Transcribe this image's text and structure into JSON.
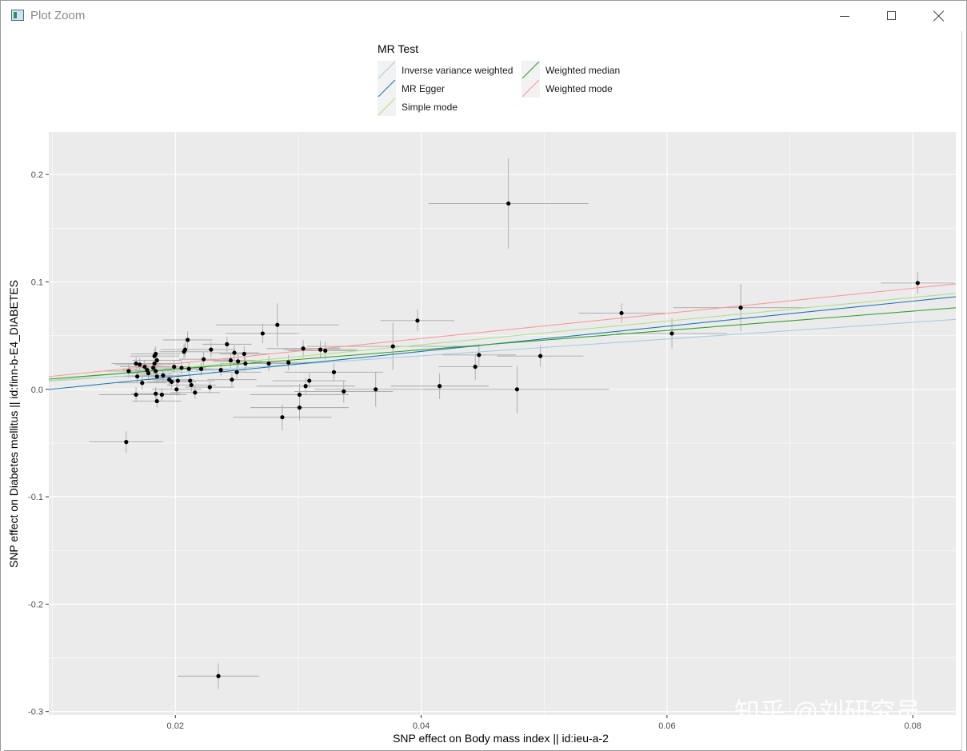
{
  "window": {
    "title": "Plot Zoom",
    "icons": {
      "app": "plot-zoom-icon",
      "minimize": "minimize-icon",
      "maximize": "maximize-icon",
      "close": "close-icon"
    }
  },
  "watermark": "知乎 @刘研究员",
  "chart_data": {
    "type": "scatter",
    "xlabel": "SNP effect on Body mass index || id:ieu-a-2",
    "ylabel": "SNP effect on Diabetes mellitus || id:finn-b-E4_DIABETES",
    "xlim": [
      0.0097,
      0.0835
    ],
    "ylim": [
      -0.3032,
      0.2396
    ],
    "xticks": [
      0.02,
      0.04,
      0.06,
      0.08
    ],
    "xtick_labels": [
      "0.02",
      "0.04",
      "0.06",
      "0.08"
    ],
    "yticks": [
      -0.3,
      -0.2,
      -0.1,
      0.0,
      0.1,
      0.2
    ],
    "ytick_labels": [
      "-0.3",
      "-0.2",
      "-0.1",
      "0.0",
      "0.1",
      "0.2"
    ],
    "grid": true,
    "legend_position": "top",
    "legend": {
      "title": "MR Test",
      "entries": [
        {
          "name": "Inverse variance weighted",
          "color": "#a6cee3"
        },
        {
          "name": "MR Egger",
          "color": "#1f78b4"
        },
        {
          "name": "Simple mode",
          "color": "#b2df8a"
        },
        {
          "name": "Weighted median",
          "color": "#33a02c"
        },
        {
          "name": "Weighted mode",
          "color": "#fb9a99"
        }
      ]
    },
    "lines": [
      {
        "name": "Inverse variance weighted",
        "color": "#a6cee3",
        "intercept": 0.0,
        "slope": 0.78
      },
      {
        "name": "MR Egger",
        "color": "#1f78b4",
        "intercept": -0.0115,
        "slope": 1.17
      },
      {
        "name": "Simple mode",
        "color": "#b2df8a",
        "intercept": -0.0025,
        "slope": 1.1
      },
      {
        "name": "Weighted median",
        "color": "#33a02c",
        "intercept": 0.0008,
        "slope": 0.9
      },
      {
        "name": "Weighted mode",
        "color": "#fb9a99",
        "intercept": 0.0005,
        "slope": 1.17
      }
    ],
    "points": [
      {
        "x": 0.0162,
        "y": 0.017,
        "xerr": 0.002,
        "yerr": 0.006
      },
      {
        "x": 0.0168,
        "y": 0.024,
        "xerr": 0.002,
        "yerr": 0.006
      },
      {
        "x": 0.0171,
        "y": 0.023,
        "xerr": 0.002,
        "yerr": 0.006
      },
      {
        "x": 0.0175,
        "y": 0.021,
        "xerr": 0.002,
        "yerr": 0.006
      },
      {
        "x": 0.0177,
        "y": 0.018,
        "xerr": 0.002,
        "yerr": 0.006
      },
      {
        "x": 0.0173,
        "y": 0.006,
        "xerr": 0.002,
        "yerr": 0.006
      },
      {
        "x": 0.0169,
        "y": 0.012,
        "xerr": 0.002,
        "yerr": 0.006
      },
      {
        "x": 0.0168,
        "y": -0.005,
        "xerr": 0.003,
        "yerr": 0.007
      },
      {
        "x": 0.0178,
        "y": 0.015,
        "xerr": 0.002,
        "yerr": 0.006
      },
      {
        "x": 0.0182,
        "y": 0.02,
        "xerr": 0.002,
        "yerr": 0.006
      },
      {
        "x": 0.0183,
        "y": 0.031,
        "xerr": 0.002,
        "yerr": 0.007
      },
      {
        "x": 0.0184,
        "y": 0.033,
        "xerr": 0.002,
        "yerr": 0.007
      },
      {
        "x": 0.0185,
        "y": 0.027,
        "xerr": 0.002,
        "yerr": 0.006
      },
      {
        "x": 0.0183,
        "y": 0.024,
        "xerr": 0.002,
        "yerr": 0.006
      },
      {
        "x": 0.0184,
        "y": 0.017,
        "xerr": 0.002,
        "yerr": 0.006
      },
      {
        "x": 0.0185,
        "y": 0.012,
        "xerr": 0.002,
        "yerr": 0.006
      },
      {
        "x": 0.0184,
        "y": -0.004,
        "xerr": 0.002,
        "yerr": 0.006
      },
      {
        "x": 0.0185,
        "y": -0.011,
        "xerr": 0.002,
        "yerr": 0.006
      },
      {
        "x": 0.0189,
        "y": -0.005,
        "xerr": 0.002,
        "yerr": 0.006
      },
      {
        "x": 0.019,
        "y": 0.013,
        "xerr": 0.002,
        "yerr": 0.006
      },
      {
        "x": 0.0195,
        "y": 0.009,
        "xerr": 0.002,
        "yerr": 0.006
      },
      {
        "x": 0.0197,
        "y": 0.007,
        "xerr": 0.002,
        "yerr": 0.006
      },
      {
        "x": 0.0199,
        "y": 0.021,
        "xerr": 0.002,
        "yerr": 0.006
      },
      {
        "x": 0.0201,
        "y": 0.0,
        "xerr": 0.002,
        "yerr": 0.006
      },
      {
        "x": 0.0202,
        "y": 0.008,
        "xerr": 0.002,
        "yerr": 0.006
      },
      {
        "x": 0.0205,
        "y": 0.02,
        "xerr": 0.002,
        "yerr": 0.006
      },
      {
        "x": 0.0207,
        "y": 0.035,
        "xerr": 0.002,
        "yerr": 0.007
      },
      {
        "x": 0.0208,
        "y": 0.037,
        "xerr": 0.002,
        "yerr": 0.007
      },
      {
        "x": 0.021,
        "y": 0.046,
        "xerr": 0.002,
        "yerr": 0.008
      },
      {
        "x": 0.0211,
        "y": 0.019,
        "xerr": 0.002,
        "yerr": 0.006
      },
      {
        "x": 0.0212,
        "y": 0.008,
        "xerr": 0.002,
        "yerr": 0.006
      },
      {
        "x": 0.0213,
        "y": 0.004,
        "xerr": 0.002,
        "yerr": 0.006
      },
      {
        "x": 0.0216,
        "y": -0.003,
        "xerr": 0.002,
        "yerr": 0.006
      },
      {
        "x": 0.0221,
        "y": 0.019,
        "xerr": 0.002,
        "yerr": 0.006
      },
      {
        "x": 0.0223,
        "y": 0.028,
        "xerr": 0.002,
        "yerr": 0.007
      },
      {
        "x": 0.0228,
        "y": 0.002,
        "xerr": 0.002,
        "yerr": 0.006
      },
      {
        "x": 0.0229,
        "y": 0.037,
        "xerr": 0.002,
        "yerr": 0.007
      },
      {
        "x": 0.0237,
        "y": 0.018,
        "xerr": 0.002,
        "yerr": 0.006
      },
      {
        "x": 0.0242,
        "y": 0.042,
        "xerr": 0.002,
        "yerr": 0.007
      },
      {
        "x": 0.0245,
        "y": 0.027,
        "xerr": 0.002,
        "yerr": 0.007
      },
      {
        "x": 0.0246,
        "y": 0.009,
        "xerr": 0.002,
        "yerr": 0.006
      },
      {
        "x": 0.0248,
        "y": 0.034,
        "xerr": 0.002,
        "yerr": 0.007
      },
      {
        "x": 0.025,
        "y": 0.016,
        "xerr": 0.002,
        "yerr": 0.006
      },
      {
        "x": 0.0251,
        "y": 0.026,
        "xerr": 0.002,
        "yerr": 0.007
      },
      {
        "x": 0.0256,
        "y": 0.033,
        "xerr": 0.002,
        "yerr": 0.007
      },
      {
        "x": 0.0257,
        "y": 0.024,
        "xerr": 0.002,
        "yerr": 0.006
      },
      {
        "x": 0.0271,
        "y": 0.052,
        "xerr": 0.003,
        "yerr": 0.009
      },
      {
        "x": 0.0276,
        "y": 0.024,
        "xerr": 0.003,
        "yerr": 0.007
      },
      {
        "x": 0.0283,
        "y": 0.06,
        "xerr": 0.005,
        "yerr": 0.02
      },
      {
        "x": 0.0287,
        "y": -0.026,
        "xerr": 0.004,
        "yerr": 0.012
      },
      {
        "x": 0.0292,
        "y": 0.025,
        "xerr": 0.003,
        "yerr": 0.007
      },
      {
        "x": 0.0301,
        "y": -0.005,
        "xerr": 0.004,
        "yerr": 0.01
      },
      {
        "x": 0.0301,
        "y": -0.017,
        "xerr": 0.004,
        "yerr": 0.012
      },
      {
        "x": 0.0304,
        "y": 0.038,
        "xerr": 0.003,
        "yerr": 0.008
      },
      {
        "x": 0.0306,
        "y": 0.003,
        "xerr": 0.004,
        "yerr": 0.008
      },
      {
        "x": 0.0309,
        "y": 0.008,
        "xerr": 0.003,
        "yerr": 0.007
      },
      {
        "x": 0.0318,
        "y": 0.037,
        "xerr": 0.003,
        "yerr": 0.008
      },
      {
        "x": 0.0322,
        "y": 0.036,
        "xerr": 0.003,
        "yerr": 0.008
      },
      {
        "x": 0.0329,
        "y": 0.016,
        "xerr": 0.004,
        "yerr": 0.008
      },
      {
        "x": 0.0337,
        "y": -0.002,
        "xerr": 0.004,
        "yerr": 0.01
      },
      {
        "x": 0.0363,
        "y": 0.0,
        "xerr": 0.005,
        "yerr": 0.016
      },
      {
        "x": 0.0377,
        "y": 0.04,
        "xerr": 0.007,
        "yerr": 0.022
      },
      {
        "x": 0.0397,
        "y": 0.064,
        "xerr": 0.003,
        "yerr": 0.01
      },
      {
        "x": 0.0415,
        "y": 0.003,
        "xerr": 0.004,
        "yerr": 0.012
      },
      {
        "x": 0.0444,
        "y": 0.021,
        "xerr": 0.003,
        "yerr": 0.012
      },
      {
        "x": 0.0447,
        "y": 0.032,
        "xerr": 0.003,
        "yerr": 0.01
      },
      {
        "x": 0.0471,
        "y": 0.173,
        "xerr": 0.0065,
        "yerr": 0.042
      },
      {
        "x": 0.0478,
        "y": 0.0,
        "xerr": 0.0075,
        "yerr": 0.022
      },
      {
        "x": 0.0497,
        "y": 0.031,
        "xerr": 0.0035,
        "yerr": 0.01
      },
      {
        "x": 0.0563,
        "y": 0.071,
        "xerr": 0.0035,
        "yerr": 0.009
      },
      {
        "x": 0.0604,
        "y": 0.052,
        "xerr": 0.0045,
        "yerr": 0.014
      },
      {
        "x": 0.066,
        "y": 0.076,
        "xerr": 0.0055,
        "yerr": 0.022
      },
      {
        "x": 0.0804,
        "y": 0.099,
        "xerr": 0.003,
        "yerr": 0.01
      },
      {
        "x": 0.016,
        "y": -0.049,
        "xerr": 0.003,
        "yerr": 0.01
      },
      {
        "x": 0.0235,
        "y": -0.267,
        "xerr": 0.0033,
        "yerr": 0.012
      }
    ]
  }
}
